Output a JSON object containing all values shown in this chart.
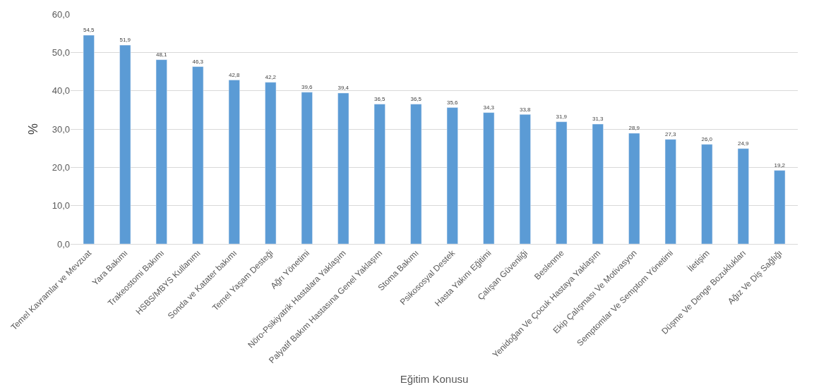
{
  "chart_data": {
    "type": "bar",
    "xlabel": "Eğitim Konusu",
    "ylabel": "%",
    "categories": [
      "Temel Kavramlar ve Mevzuat",
      "Yara Bakımı",
      "Trakeostomi Bakımı",
      "HSBS/MBYS Kullanımı",
      "Sonda ve Katater bakımı",
      "Temel Yaşam Desteği",
      "Ağrı Yönetimi",
      "Nöro-Psikiyatrik Hastalara Yaklaşım",
      "Palyatif Bakım Hastasına Genel Yaklaşım",
      "Stoma Bakımı",
      "Psikososyal Destek",
      "Hasta Yakını Eğitimi",
      "Çalışan Güvenliği",
      "Beslenme",
      "Yenidoğan Ve Çocuk Hastaya Yaklaşım",
      "Ekip Çalışması Ve Motivasyon",
      "Semptomlar Ve Semptom Yönetimi",
      "İletişim",
      "Düşme Ve Denge Bozuklukları",
      "Ağız Ve Diş Sağlığı"
    ],
    "values": [
      54.5,
      51.9,
      48.1,
      46.3,
      42.8,
      42.2,
      39.6,
      39.4,
      36.5,
      36.5,
      35.6,
      34.3,
      33.8,
      31.9,
      31.3,
      28.9,
      27.3,
      26.0,
      24.9,
      19.2
    ],
    "value_labels": [
      "54,5",
      "51,9",
      "48,1",
      "46,3",
      "42,8",
      "42,2",
      "39,6",
      "39,4",
      "36,5",
      "36,5",
      "35,6",
      "34,3",
      "33,8",
      "31,9",
      "31,3",
      "28,9",
      "27,3",
      "26,0",
      "24,9",
      "19,2"
    ],
    "color": "#5b9bd5",
    "ylim": [
      0,
      60
    ],
    "yticks": [
      {
        "value": 0,
        "label": "0,0"
      },
      {
        "value": 10,
        "label": "10,0"
      },
      {
        "value": 20,
        "label": "20,0"
      },
      {
        "value": 30,
        "label": "30,0"
      },
      {
        "value": 40,
        "label": "40,0"
      },
      {
        "value": 50,
        "label": "50,0"
      },
      {
        "value": 60,
        "label": "60,0"
      }
    ],
    "grid": "y",
    "legend": false
  }
}
